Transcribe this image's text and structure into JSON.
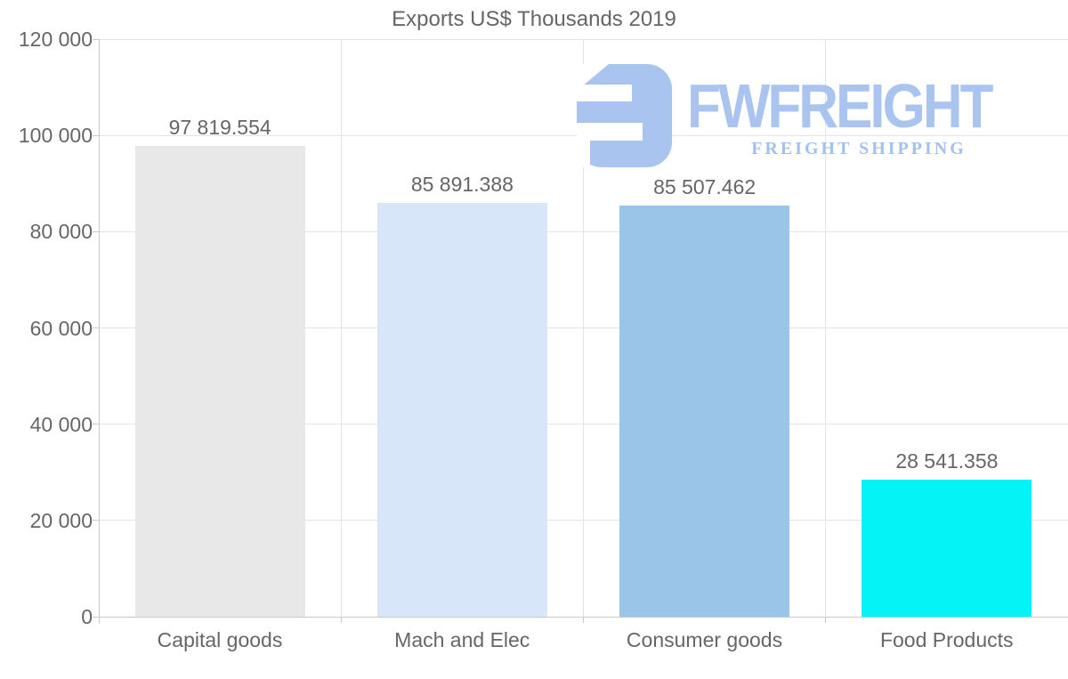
{
  "chart_data": {
    "type": "bar",
    "title": "Exports US$ Thousands 2019",
    "categories": [
      "Capital goods",
      "Mach and Elec",
      "Consumer goods",
      "Food Products"
    ],
    "values": [
      97819.554,
      85891.388,
      85507.462,
      28541.358
    ],
    "value_labels": [
      "97 819.554",
      "85 891.388",
      "85 507.462",
      "28 541.358"
    ],
    "bar_colors": [
      "#e8e8e8",
      "#d7e6f9",
      "#9ac5e9",
      "#04f3f7"
    ],
    "xlabel": "",
    "ylabel": "",
    "ylim": [
      0,
      120000
    ],
    "ytick_values": [
      0,
      20000,
      40000,
      60000,
      80000,
      100000,
      120000
    ],
    "ytick_labels": [
      "0",
      "20 000",
      "40 000",
      "60 000",
      "80 000",
      "100 000",
      "120 000"
    ],
    "grid": true,
    "legend_position": "none"
  },
  "watermark": {
    "brand": "FWFREIGHT",
    "tagline": "FREIGHT SHIPPING",
    "brand_color": "#a9c4ef",
    "tagline_color": "#a3c1f0",
    "icon": "fwfreight-logo-mark"
  },
  "colors": {
    "background": "#ffffff",
    "grid": "#e3e3e3",
    "axis": "#c9c9c9",
    "text": "#666666"
  }
}
